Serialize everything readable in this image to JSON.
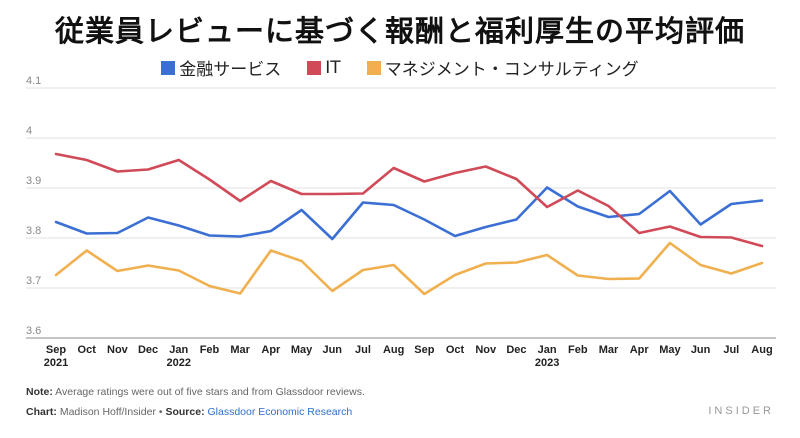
{
  "chart_data": {
    "type": "line",
    "title": "従業員レビューに基づく報酬と福利厚生の平均評価",
    "categories": [
      [
        "Sep",
        "2021"
      ],
      [
        "Oct",
        ""
      ],
      [
        "Nov",
        ""
      ],
      [
        "Dec",
        ""
      ],
      [
        "Jan",
        "2022"
      ],
      [
        "Feb",
        ""
      ],
      [
        "Mar",
        ""
      ],
      [
        "Apr",
        ""
      ],
      [
        "May",
        ""
      ],
      [
        "Jun",
        ""
      ],
      [
        "Jul",
        ""
      ],
      [
        "Aug",
        ""
      ],
      [
        "Sep",
        ""
      ],
      [
        "Oct",
        ""
      ],
      [
        "Nov",
        ""
      ],
      [
        "Dec",
        ""
      ],
      [
        "Jan",
        "2023"
      ],
      [
        "Feb",
        ""
      ],
      [
        "Mar",
        ""
      ],
      [
        "Apr",
        ""
      ],
      [
        "May",
        ""
      ],
      [
        "Jun",
        ""
      ],
      [
        "Jul",
        ""
      ],
      [
        "Aug",
        ""
      ]
    ],
    "ylim": [
      3.6,
      4.1
    ],
    "yticks": [
      "3.6",
      "3.7",
      "3.8",
      "3.9",
      "4",
      "4.1"
    ],
    "grid": true,
    "legend_position": "top-center",
    "series": [
      {
        "name": "金融サービス",
        "color": "#3b6fd4",
        "values": [
          3.832,
          3.809,
          3.81,
          3.841,
          3.825,
          3.805,
          3.803,
          3.814,
          3.856,
          3.798,
          3.871,
          3.866,
          3.837,
          3.804,
          3.822,
          3.837,
          3.901,
          3.863,
          3.842,
          3.848,
          3.894,
          3.827,
          3.868,
          3.875
        ]
      },
      {
        "name": "IT",
        "color": "#d04a58",
        "values": [
          3.968,
          3.956,
          3.933,
          3.937,
          3.956,
          3.917,
          3.874,
          3.914,
          3.888,
          3.888,
          3.889,
          3.94,
          3.913,
          3.93,
          3.943,
          3.918,
          3.862,
          3.895,
          3.864,
          3.81,
          3.823,
          3.802,
          3.801,
          3.784
        ]
      },
      {
        "name": "マネジメント・コンサルティング",
        "color": "#f0b050",
        "values": [
          3.726,
          3.775,
          3.734,
          3.745,
          3.735,
          3.704,
          3.689,
          3.775,
          3.754,
          3.694,
          3.736,
          3.746,
          3.688,
          3.726,
          3.749,
          3.751,
          3.766,
          3.725,
          3.718,
          3.719,
          3.79,
          3.746,
          3.729,
          3.75
        ]
      }
    ]
  },
  "footer": {
    "note_label": "Note:",
    "note_text": " Average ratings were out of five stars and from Glassdoor reviews.",
    "chart_label": "Chart:",
    "chart_text": " Madison Hoff/Insider • ",
    "source_label": "Source:",
    "source_text": "Glassdoor Economic Research",
    "brand": "INSIDER"
  }
}
